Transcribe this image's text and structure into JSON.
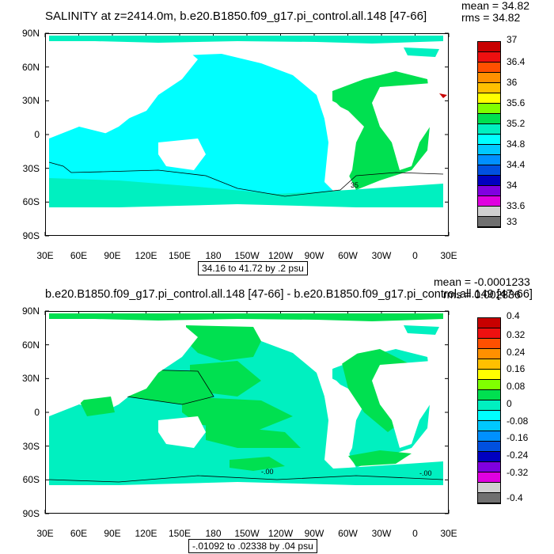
{
  "panel1": {
    "title": "SALINITY at z=2414.0m, b.e20.B1850.f09_g17.pi_control.all.148 [47-66]",
    "mean": "mean = 34.82",
    "rms": "rms = 34.82",
    "range": "34.16 to 41.72 by .2 psu",
    "contour_label": "35",
    "colorbar_labels": [
      "37",
      "36.4",
      "36",
      "35.6",
      "35.2",
      "34.8",
      "34.4",
      "34",
      "33.6",
      "33"
    ],
    "colors": [
      "#c80000",
      "#ee1010",
      "#ff5000",
      "#ff9000",
      "#ffc000",
      "#ffff00",
      "#80ff00",
      "#00e050",
      "#00f0c0",
      "#00ffff",
      "#00c8ff",
      "#0090ff",
      "#0050e0",
      "#0000c0",
      "#8000e0",
      "#e000e0",
      "#d0d0d0",
      "#707070"
    ]
  },
  "panel2": {
    "title": "b.e20.B1850.f09_g17.pi_control.all.148 [47-66] - b.e20.B1850.f09_g17.pi_control.all.149 [47-66]",
    "mean": "mean = -0.0001233",
    "rms": "rms = 0.002836",
    "range": "-.01092 to .02338 by .04 psu",
    "contour_label": "-.00",
    "colorbar_labels": [
      "0.4",
      "0.32",
      "0.24",
      "0.16",
      "0.08",
      "0",
      "-0.08",
      "-0.16",
      "-0.24",
      "-0.32",
      "-0.4"
    ],
    "colors": [
      "#c80000",
      "#ee1010",
      "#ff5000",
      "#ff9000",
      "#ffc000",
      "#ffff00",
      "#80ff00",
      "#00e050",
      "#00f0c0",
      "#00ffff",
      "#00c8ff",
      "#0090ff",
      "#0050e0",
      "#0000c0",
      "#8000e0",
      "#e000e0",
      "#d0d0d0",
      "#707070"
    ]
  },
  "axes": {
    "y_ticks": [
      "90N",
      "60N",
      "30N",
      "0",
      "30S",
      "60S",
      "90S"
    ],
    "x_ticks": [
      "30E",
      "60E",
      "90E",
      "120E",
      "150E",
      "180",
      "150W",
      "120W",
      "90W",
      "60W",
      "30W",
      "0",
      "30E"
    ]
  },
  "fills": {
    "ocean1": "#00ffff",
    "ocean1b": "#00f0c0",
    "atlantic1": "#00e050",
    "ocean2": "#00f0c0",
    "pos2": "#00e050"
  }
}
